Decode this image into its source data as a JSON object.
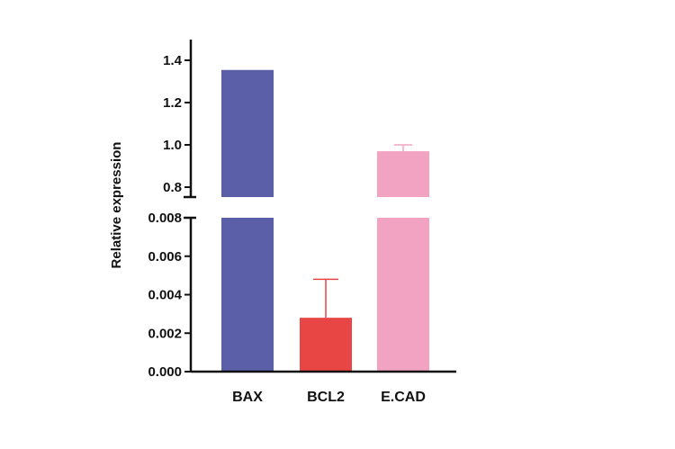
{
  "chart_data": {
    "type": "bar",
    "xlabel": "",
    "ylabel": "Relative expression",
    "categories": [
      "BAX",
      "BCL2",
      "E.CAD"
    ],
    "series": [
      {
        "values": [
          1.35,
          0.0028,
          0.97
        ],
        "errors": [
          0.0,
          0.002,
          0.03
        ],
        "colors": [
          "#5A5FA8",
          "#E84545",
          "#F3A3C2"
        ]
      }
    ],
    "broken_axis": {
      "lower_segment": {
        "ylim": [
          0,
          0.008
        ],
        "ticks": [
          "0.000",
          "0.002",
          "0.004",
          "0.006",
          "0.008"
        ]
      },
      "upper_segment": {
        "ylim": [
          0.75,
          1.45
        ],
        "ticks": [
          "0.8",
          "1.0",
          "1.2",
          "1.4"
        ]
      }
    },
    "grid": false,
    "legend": "none"
  }
}
